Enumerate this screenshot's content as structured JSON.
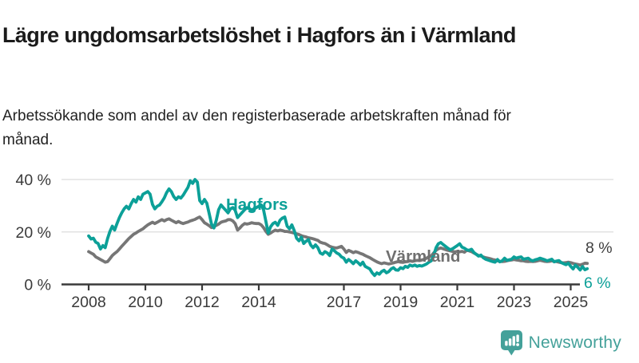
{
  "header": {
    "title": "Lägre ungdomsarbetslöshet i Hagfors än i Värmland",
    "subtitle": "Arbetssökande som andel av den registerbaserade arbetskraften månad för månad."
  },
  "branding": {
    "logo_text": "Newsworthy",
    "logo_icon": "bar-chart-speech-bubble-icon"
  },
  "colors": {
    "hagfors": "#0CA098",
    "varmland": "#767676",
    "varmland_label": "#6f6f6f",
    "axis": "#3a3a3a",
    "grid": "#dcdcdc",
    "end_label_varmland": "#3f3f3f",
    "end_label_hagfors": "#0CA098",
    "logo": "#44A19A",
    "background": "#ffffff"
  },
  "chart_data": {
    "type": "line",
    "title": "Lägre ungdomsarbetslöshet i Hagfors än i Värmland",
    "subtitle": "Arbetssökande som andel av den registerbaserade arbetskraften månad för månad.",
    "x_unit": "monthly",
    "x_start_year": 2008,
    "x_end_label": "2025-08",
    "grid": "horizontal",
    "legend_position": "inline-labels",
    "ylim": [
      0,
      43
    ],
    "y_ticks": [
      {
        "value": 0,
        "label": "0 %"
      },
      {
        "value": 20,
        "label": "20 %"
      },
      {
        "value": 40,
        "label": "40 %"
      }
    ],
    "x_ticks": [
      {
        "year": 2008,
        "label": "2008"
      },
      {
        "year": 2010,
        "label": "2010"
      },
      {
        "year": 2012,
        "label": "2012"
      },
      {
        "year": 2014,
        "label": "2014"
      },
      {
        "year": 2017,
        "label": "2017"
      },
      {
        "year": 2019,
        "label": "2019"
      },
      {
        "year": 2021,
        "label": "2021"
      },
      {
        "year": 2023,
        "label": "2023"
      },
      {
        "year": 2025,
        "label": "2025"
      }
    ],
    "series": [
      {
        "name": "Värmland",
        "color": "#767676",
        "end_label": "8 %",
        "values": [
          12.5,
          12.0,
          11.5,
          10.5,
          10.0,
          9.5,
          9.0,
          8.5,
          8.7,
          9.8,
          11.0,
          11.8,
          12.5,
          13.5,
          14.5,
          15.5,
          16.5,
          17.5,
          18.3,
          19.1,
          19.6,
          20.2,
          20.7,
          21.2,
          22.0,
          22.7,
          23.2,
          23.7,
          23.2,
          23.7,
          24.2,
          24.7,
          24.2,
          24.7,
          25.0,
          24.5,
          24.0,
          23.5,
          24.0,
          23.5,
          23.2,
          23.5,
          23.8,
          24.2,
          24.5,
          24.8,
          25.3,
          25.7,
          24.7,
          23.5,
          23.0,
          22.4,
          21.7,
          22.0,
          22.5,
          23.0,
          23.7,
          24.0,
          24.2,
          24.7,
          24.7,
          24.2,
          23.2,
          20.7,
          21.5,
          22.5,
          23.2,
          23.0,
          23.2,
          23.5,
          23.3,
          23.2,
          23.2,
          22.7,
          21.7,
          20.2,
          19.1,
          19.6,
          20.2,
          20.7,
          20.4,
          20.7,
          20.5,
          20.2,
          20.2,
          20.0,
          19.8,
          19.6,
          19.3,
          19.0,
          18.6,
          18.3,
          18.1,
          17.8,
          17.6,
          17.4,
          17.1,
          16.8,
          16.1,
          15.8,
          15.6,
          15.1,
          14.5,
          14.2,
          14.0,
          13.9,
          14.2,
          14.5,
          13.5,
          12.2,
          13.0,
          12.6,
          12.1,
          12.5,
          12.2,
          11.8,
          11.5,
          11.0,
          10.6,
          10.2,
          9.6,
          9.1,
          8.6,
          8.2,
          7.9,
          8.2,
          8.0,
          7.8,
          8.0,
          8.2,
          8.5,
          8.7,
          8.5,
          8.4,
          8.6,
          8.7,
          9.0,
          8.8,
          9.0,
          9.2,
          9.1,
          9.3,
          9.6,
          10.0,
          10.6,
          10.9,
          12.0,
          13.0,
          13.6,
          13.9,
          13.6,
          13.3,
          13.0,
          12.8,
          12.6,
          12.4,
          12.6,
          12.4,
          12.6,
          12.3,
          13.0,
          12.8,
          12.5,
          12.0,
          11.5,
          11.0,
          10.8,
          10.5,
          10.2,
          10.0,
          9.8,
          9.5,
          9.3,
          9.0,
          8.8,
          8.7,
          8.8,
          9.0,
          9.2,
          9.3,
          9.5,
          9.3,
          9.2,
          9.0,
          9.0,
          8.8,
          8.7,
          8.8,
          8.7,
          8.8,
          9.0,
          9.2,
          9.0,
          8.8,
          8.7,
          8.8,
          9.0,
          8.8,
          8.7,
          8.5,
          8.3,
          8.2,
          8.3,
          8.5,
          8.3,
          8.0,
          7.8,
          7.6,
          7.4,
          7.7,
          8.1,
          8.0
        ]
      },
      {
        "name": "Hagfors",
        "color": "#0CA098",
        "end_label": "6 %",
        "values": [
          18.5,
          17.3,
          17.6,
          16.1,
          15.6,
          13.5,
          14.8,
          14.0,
          17.5,
          20.2,
          22.2,
          20.7,
          23.2,
          25.5,
          27.3,
          28.8,
          29.8,
          28.8,
          30.8,
          32.4,
          31.4,
          33.4,
          32.4,
          34.4,
          34.9,
          35.4,
          34.4,
          30.5,
          28.8,
          29.8,
          30.3,
          31.5,
          33.0,
          35.0,
          36.4,
          35.4,
          33.5,
          32.4,
          33.4,
          32.9,
          34.0,
          35.5,
          37.0,
          39.5,
          38.5,
          40.0,
          39.0,
          32.0,
          30.8,
          32.4,
          31.0,
          27.0,
          23.0,
          21.5,
          24.5,
          28.5,
          30.3,
          29.3,
          28.3,
          27.3,
          28.8,
          29.3,
          28.3,
          25.5,
          26.5,
          27.5,
          28.5,
          29.3,
          28.8,
          28.3,
          28.8,
          29.3,
          29.8,
          30.3,
          28.5,
          24.0,
          19.6,
          22.0,
          23.2,
          23.7,
          22.5,
          24.5,
          25.3,
          25.7,
          22.2,
          21.2,
          22.7,
          20.5,
          17.6,
          16.6,
          18.0,
          15.6,
          16.5,
          17.1,
          15.0,
          14.0,
          15.1,
          14.0,
          12.0,
          11.5,
          12.5,
          12.0,
          11.0,
          13.5,
          12.8,
          12.0,
          11.5,
          10.5,
          10.0,
          8.5,
          9.5,
          8.8,
          7.9,
          9.0,
          8.3,
          7.4,
          8.5,
          6.9,
          6.4,
          5.9,
          4.4,
          3.4,
          4.4,
          3.9,
          4.9,
          5.4,
          4.4,
          4.9,
          5.9,
          6.4,
          5.5,
          5.4,
          6.4,
          6.0,
          6.9,
          6.5,
          7.4,
          7.0,
          7.4,
          6.9,
          7.2,
          7.0,
          7.4,
          7.8,
          8.5,
          9.0,
          11.0,
          14.0,
          15.5,
          16.0,
          15.2,
          14.5,
          13.8,
          13.2,
          13.6,
          14.2,
          14.8,
          15.5,
          14.2,
          13.8,
          13.2,
          13.0,
          13.4,
          12.2,
          11.5,
          10.8,
          11.2,
          10.2,
          9.6,
          9.3,
          9.0,
          8.7,
          8.5,
          9.5,
          8.6,
          9.0,
          10.0,
          9.2,
          9.4,
          9.6,
          10.5,
          10.0,
          10.3,
          10.5,
          9.6,
          9.8,
          10.0,
          9.3,
          9.0,
          9.4,
          9.6,
          10.0,
          9.7,
          9.4,
          9.0,
          9.3,
          9.6,
          8.6,
          8.9,
          9.1,
          8.3,
          7.9,
          7.5,
          8.1,
          6.9,
          5.9,
          7.4,
          6.5,
          5.5,
          6.8,
          5.6,
          6.0
        ]
      }
    ]
  }
}
